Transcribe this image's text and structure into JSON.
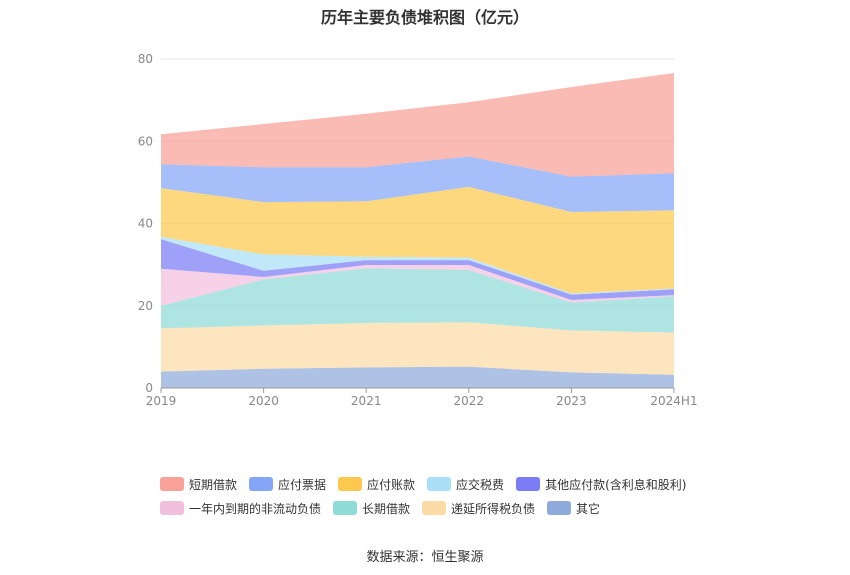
{
  "title": "历年主要负债堆积图（亿元）",
  "source": "数据来源：恒生聚源",
  "chart_data": {
    "type": "area",
    "stacked": true,
    "categories": [
      "2019",
      "2020",
      "2021",
      "2022",
      "2023",
      "2024H1"
    ],
    "ylim": [
      0,
      80
    ],
    "yticks": [
      0,
      20,
      40,
      60,
      80
    ],
    "grid": true,
    "legend_position": "bottom",
    "series": [
      {
        "name": "其它",
        "color": "#8eaadb",
        "values": [
          4.0,
          4.7,
          5.0,
          5.2,
          3.8,
          3.2
        ]
      },
      {
        "name": "递延所得税负债",
        "color": "#fcdba7",
        "values": [
          10.5,
          10.5,
          10.8,
          10.8,
          10.2,
          10.3
        ]
      },
      {
        "name": "长期借款",
        "color": "#8fdbd7",
        "values": [
          5.5,
          11.2,
          13.3,
          12.7,
          6.8,
          8.8
        ]
      },
      {
        "name": "一年内到期的非流动负债",
        "color": "#f2bfdf",
        "values": [
          9.0,
          0.6,
          0.8,
          1.2,
          0.6,
          0.3
        ]
      },
      {
        "name": "其他应付款(含利息和股利)",
        "color": "#7a7df5",
        "values": [
          7.2,
          1.5,
          1.2,
          1.2,
          1.3,
          1.4
        ]
      },
      {
        "name": "应交税费",
        "color": "#a9dff7",
        "values": [
          0.6,
          4.0,
          0.8,
          0.6,
          0.3,
          0.2
        ]
      },
      {
        "name": "应付账款",
        "color": "#fcc94e",
        "values": [
          11.8,
          12.7,
          13.5,
          17.2,
          19.8,
          19.0
        ]
      },
      {
        "name": "应付票据",
        "color": "#84a5f8",
        "values": [
          5.8,
          8.5,
          8.3,
          7.4,
          8.6,
          9.0
        ]
      },
      {
        "name": "短期借款",
        "color": "#f9a199",
        "values": [
          7.3,
          10.5,
          13.0,
          13.2,
          21.8,
          24.4
        ]
      }
    ]
  },
  "legend": {
    "row1": [
      {
        "label": "短期借款",
        "color": "#f9a199"
      },
      {
        "label": "应付票据",
        "color": "#84a5f8"
      },
      {
        "label": "应付账款",
        "color": "#fcc94e"
      },
      {
        "label": "应交税费",
        "color": "#a9dff7"
      },
      {
        "label": "其他应付款(含利息和股利)",
        "color": "#7a7df5"
      }
    ],
    "row2": [
      {
        "label": "一年内到期的非流动负债",
        "color": "#f2bfdf"
      },
      {
        "label": "长期借款",
        "color": "#8fdbd7"
      },
      {
        "label": "递延所得税负债",
        "color": "#fcdba7"
      },
      {
        "label": "其它",
        "color": "#8eaadb"
      }
    ]
  }
}
